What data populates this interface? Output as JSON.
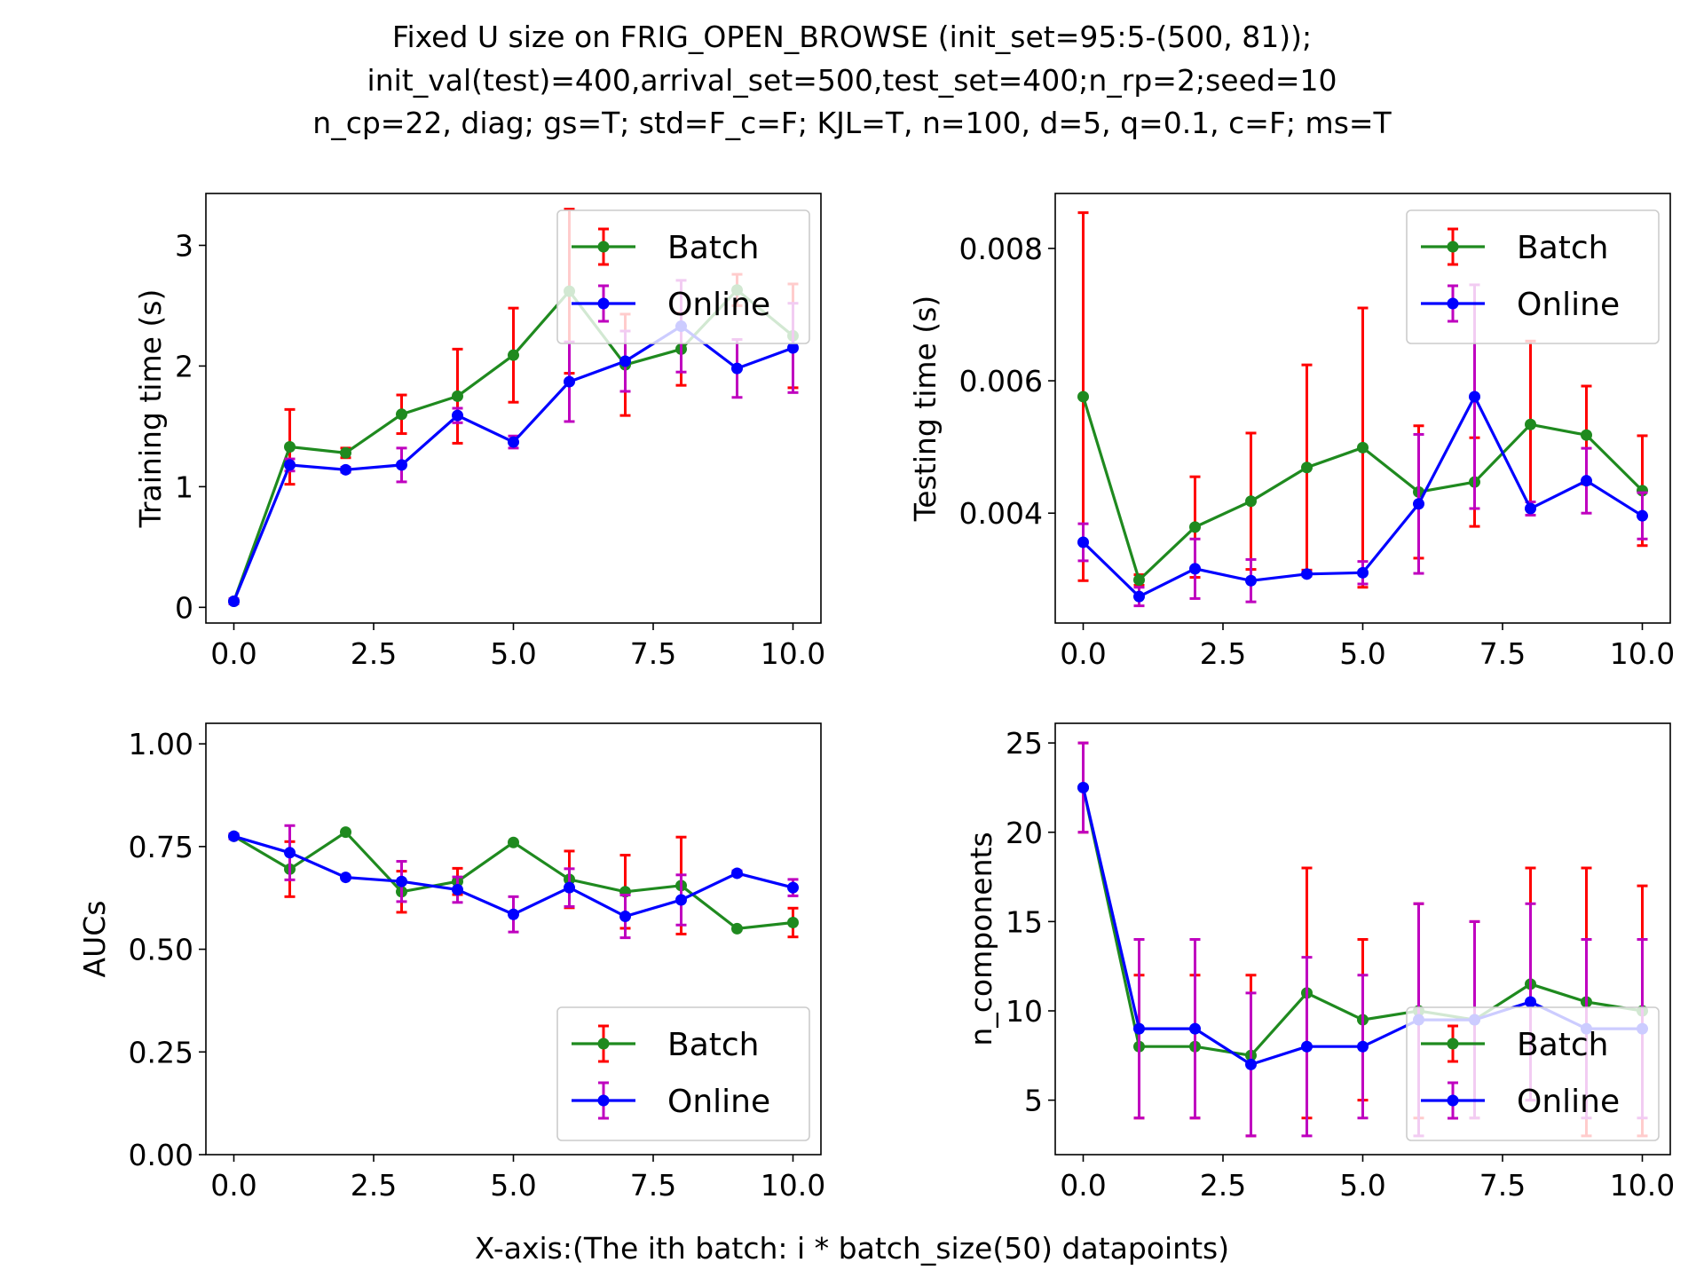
{
  "figure": {
    "title_lines": [
      "Fixed U size on FRIG_OPEN_BROWSE (init_set=95:5-(500, 81));",
      "init_val(test)=400,arrival_set=500,test_set=400;n_rp=2;seed=10",
      "n_cp=22, diag; gs=T; std=F_c=F; KJL=T, n=100, d=5, q=0.1, c=F; ms=T"
    ],
    "xlabel": "X-axis:(The ith batch: i * batch_size(50) datapoints)"
  },
  "colors": {
    "batch_line": "#1f8a1f",
    "batch_err": "#ff0000",
    "online_line": "#0000ff",
    "online_err": "#bf00bf"
  },
  "chart_data": [
    {
      "type": "line",
      "ylabel": "Training time (s)",
      "xlim": [
        -0.5,
        10.5
      ],
      "ylim": [
        -0.13,
        3.43
      ],
      "xticks": [
        0,
        2.5,
        5,
        7.5,
        10
      ],
      "xtick_labels": [
        "0.0",
        "2.5",
        "5.0",
        "7.5",
        "10.0"
      ],
      "yticks": [
        0,
        1,
        2,
        3
      ],
      "ytick_labels": [
        "0",
        "1",
        "2",
        "3"
      ],
      "legend": "top-right",
      "x": [
        0,
        1,
        2,
        3,
        4,
        5,
        6,
        7,
        8,
        9,
        10
      ],
      "series": [
        {
          "name": "Batch",
          "values": [
            0.05,
            1.33,
            1.28,
            1.6,
            1.75,
            2.09,
            2.62,
            2.01,
            2.14,
            2.63,
            2.25
          ],
          "errors": [
            0.02,
            0.31,
            0.04,
            0.16,
            0.39,
            0.39,
            0.68,
            0.42,
            0.3,
            0.13,
            0.43
          ]
        },
        {
          "name": "Online",
          "values": [
            0.05,
            1.18,
            1.14,
            1.18,
            1.59,
            1.37,
            1.87,
            2.04,
            2.33,
            1.98,
            2.15
          ],
          "errors": [
            0.02,
            0.05,
            0.02,
            0.14,
            0.06,
            0.05,
            0.33,
            0.25,
            0.38,
            0.24,
            0.37
          ]
        }
      ]
    },
    {
      "type": "line",
      "ylabel": "Testing time (s)",
      "xlim": [
        -0.5,
        10.5
      ],
      "ylim": [
        0.00234,
        0.00883
      ],
      "xticks": [
        0,
        2.5,
        5,
        7.5,
        10
      ],
      "xtick_labels": [
        "0.0",
        "2.5",
        "5.0",
        "7.5",
        "10.0"
      ],
      "yticks": [
        0.004,
        0.006,
        0.008
      ],
      "ytick_labels": [
        "0.004",
        "0.006",
        "0.008"
      ],
      "legend": "top-right",
      "x": [
        0,
        1,
        2,
        3,
        4,
        5,
        6,
        7,
        8,
        9,
        10
      ],
      "series": [
        {
          "name": "Batch",
          "values": [
            0.00576,
            0.00299,
            0.00379,
            0.00418,
            0.00469,
            0.00499,
            0.00432,
            0.00447,
            0.00534,
            0.00518,
            0.00434
          ],
          "errors": [
            0.00278,
            8e-05,
            0.00076,
            0.00103,
            0.00155,
            0.00211,
            0.001,
            0.00067,
            0.00126,
            0.00074,
            0.00083
          ]
        },
        {
          "name": "Online",
          "values": [
            0.00356,
            0.00274,
            0.00316,
            0.00298,
            0.00308,
            0.0031,
            0.00414,
            0.00576,
            0.00407,
            0.00449,
            0.00396
          ],
          "errors": [
            0.00028,
            0.00014,
            0.00045,
            0.00032,
            3e-05,
            0.00017,
            0.00105,
            0.00169,
            0.0001,
            0.00049,
            0.00035
          ]
        }
      ]
    },
    {
      "type": "line",
      "ylabel": "AUCs",
      "xlim": [
        -0.5,
        10.5
      ],
      "ylim": [
        0.0,
        1.05
      ],
      "xticks": [
        0,
        2.5,
        5,
        7.5,
        10
      ],
      "xtick_labels": [
        "0.0",
        "2.5",
        "5.0",
        "7.5",
        "10.0"
      ],
      "yticks": [
        0.0,
        0.25,
        0.5,
        0.75,
        1.0
      ],
      "ytick_labels": [
        "0.00",
        "0.25",
        "0.50",
        "0.75",
        "1.00"
      ],
      "legend": "bottom-right",
      "x": [
        0,
        1,
        2,
        3,
        4,
        5,
        6,
        7,
        8,
        9,
        10
      ],
      "series": [
        {
          "name": "Batch",
          "values": [
            0.775,
            0.695,
            0.785,
            0.64,
            0.665,
            0.76,
            0.67,
            0.64,
            0.655,
            0.55,
            0.565
          ],
          "errors": [
            0.006,
            0.067,
            0.003,
            0.05,
            0.032,
            0.003,
            0.069,
            0.089,
            0.118,
            0.003,
            0.035
          ]
        },
        {
          "name": "Online",
          "values": [
            0.775,
            0.735,
            0.675,
            0.665,
            0.645,
            0.585,
            0.65,
            0.58,
            0.62,
            0.685,
            0.65
          ],
          "errors": [
            0.006,
            0.066,
            0.003,
            0.049,
            0.031,
            0.043,
            0.046,
            0.052,
            0.061,
            0.006,
            0.02
          ]
        }
      ]
    },
    {
      "type": "line",
      "ylabel": "n_components",
      "xlim": [
        -0.5,
        10.5
      ],
      "ylim": [
        1.95,
        26.1
      ],
      "xticks": [
        0,
        2.5,
        5,
        7.5,
        10
      ],
      "xtick_labels": [
        "0.0",
        "2.5",
        "5.0",
        "7.5",
        "10.0"
      ],
      "yticks": [
        5,
        10,
        15,
        20,
        25
      ],
      "ytick_labels": [
        "5",
        "10",
        "15",
        "20",
        "25"
      ],
      "legend": "bottom-right",
      "x": [
        0,
        1,
        2,
        3,
        4,
        5,
        6,
        7,
        8,
        9,
        10
      ],
      "series": [
        {
          "name": "Batch",
          "values": [
            22.5,
            8,
            8,
            7.5,
            11,
            9.5,
            10,
            9.5,
            11.5,
            10.5,
            10
          ],
          "errors": [
            2.5,
            4,
            4,
            4.5,
            7,
            4.5,
            6,
            5.5,
            6.5,
            7.5,
            7
          ]
        },
        {
          "name": "Online",
          "values": [
            22.5,
            9,
            9,
            7,
            8,
            8,
            9.5,
            9.5,
            10.5,
            9,
            9
          ],
          "errors": [
            2.5,
            5,
            5,
            4,
            5,
            4,
            6.5,
            5.5,
            5.5,
            5,
            5
          ]
        }
      ]
    }
  ]
}
